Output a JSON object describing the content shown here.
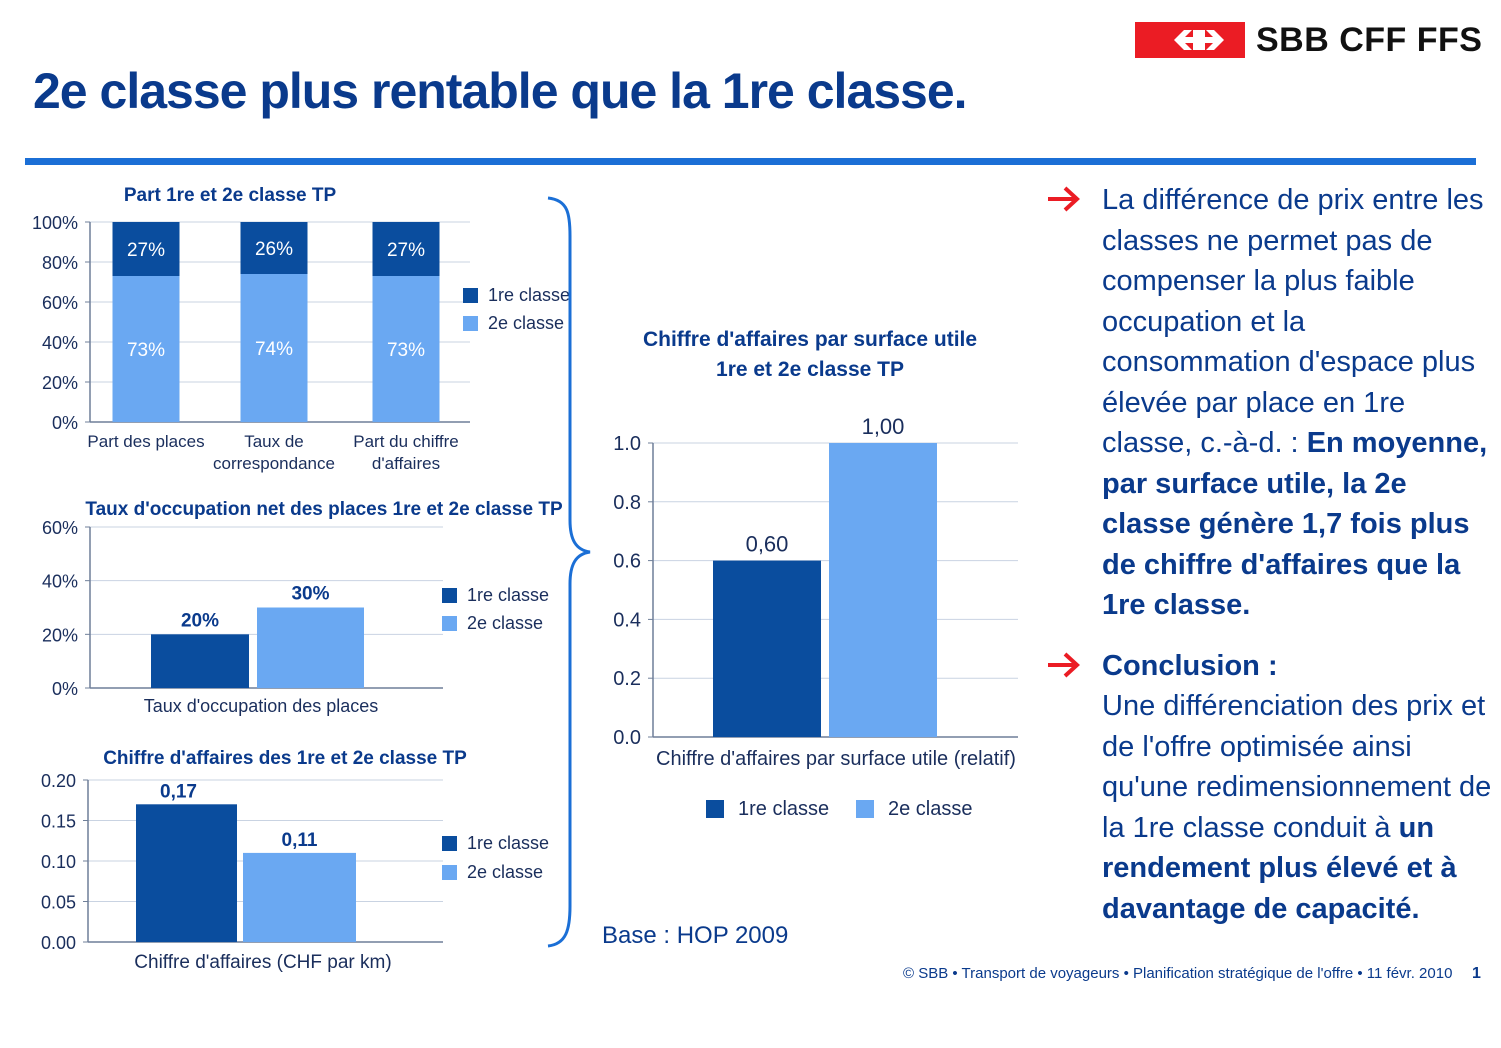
{
  "header": {
    "logo_text": "SBB CFF FFS",
    "title": "2e classe plus rentable que la 1re classe."
  },
  "colors": {
    "dark_blue": "#0a4d9e",
    "light_blue": "#6aa8f2",
    "text_blue": "#0a3a8c",
    "accent_red": "#eb1c24"
  },
  "chart_data": [
    {
      "id": "share",
      "type": "bar",
      "stacked": true,
      "title": "Part 1re et 2e classe TP",
      "categories": [
        "Part des places",
        "Taux de correspondance",
        "Part du chiffre d'affaires"
      ],
      "category_lines": [
        [
          "Part des places"
        ],
        [
          "Taux de",
          "correspondance"
        ],
        [
          "Part du chiffre",
          "d'affaires"
        ]
      ],
      "series": [
        {
          "name": "1re classe",
          "values": [
            27,
            26,
            27
          ],
          "labels": [
            "27%",
            "26%",
            "27%"
          ]
        },
        {
          "name": "2e classe",
          "values": [
            73,
            74,
            73
          ],
          "labels": [
            "73%",
            "74%",
            "73%"
          ]
        }
      ],
      "ylim": [
        0,
        100
      ],
      "yticks": [
        "0%",
        "20%",
        "40%",
        "60%",
        "80%",
        "100%"
      ],
      "legend": "right",
      "grid": true
    },
    {
      "id": "occupancy",
      "type": "bar",
      "title": "Taux d'occupation net des places 1re et 2e classe TP",
      "categories": [
        "Taux d'occupation des places"
      ],
      "series": [
        {
          "name": "1re classe",
          "values": [
            20
          ],
          "labels": [
            "20%"
          ]
        },
        {
          "name": "2e classe",
          "values": [
            30
          ],
          "labels": [
            "30%"
          ]
        }
      ],
      "ylim": [
        0,
        60
      ],
      "yticks": [
        "0%",
        "20%",
        "40%",
        "60%"
      ],
      "legend": "right",
      "grid": true
    },
    {
      "id": "revenue",
      "type": "bar",
      "title": "Chiffre d'affaires des 1re et 2e classe TP",
      "categories": [
        "Chiffre d'affaires (CHF par km)"
      ],
      "series": [
        {
          "name": "1re classe",
          "values": [
            0.17
          ],
          "labels": [
            "0,17"
          ]
        },
        {
          "name": "2e classe",
          "values": [
            0.11
          ],
          "labels": [
            "0,11"
          ]
        }
      ],
      "ylim": [
        0,
        0.2
      ],
      "yticks": [
        "0.00",
        "0.05",
        "0.10",
        "0.15",
        "0.20"
      ],
      "legend": "right",
      "grid": true
    },
    {
      "id": "surface",
      "type": "bar",
      "title": "Chiffre d'affaires par surface utile",
      "subtitle": "1re et 2e classe TP",
      "categories": [
        "Chiffre d'affaires par surface utile (relatif)"
      ],
      "series": [
        {
          "name": "1re classe",
          "values": [
            0.6
          ],
          "labels": [
            "0,60"
          ]
        },
        {
          "name": "2e classe",
          "values": [
            1.0
          ],
          "labels": [
            "1,00"
          ]
        }
      ],
      "ylim": [
        0,
        1.0
      ],
      "yticks": [
        "0.0",
        "0.2",
        "0.4",
        "0.6",
        "0.8",
        "1.0"
      ],
      "legend": "bottom",
      "grid": true
    }
  ],
  "bullets": [
    {
      "text": "La différence de prix entre les classes ne permet pas de compenser la plus faible occupation et la consommation d'espace plus élevée par place en 1re classe, c.-à-d. :",
      "strong": "En moyenne, par surface utile, la 2e classe génère 1,7 fois plus de chiffre d'affaires que la 1re classe."
    },
    {
      "lead": "Conclusion :",
      "text": "Une différenciation des prix et de l'offre optimisée ainsi qu'une redimensionnement de la 1re classe conduit à",
      "strong": "un rendement plus élevé et à davantage de capacité."
    }
  ],
  "base_note": "Base : HOP 2009",
  "footer": "© SBB • Transport de voyageurs • Planification stratégique de l'offre • 11 févr. 2010",
  "page_number": "1"
}
